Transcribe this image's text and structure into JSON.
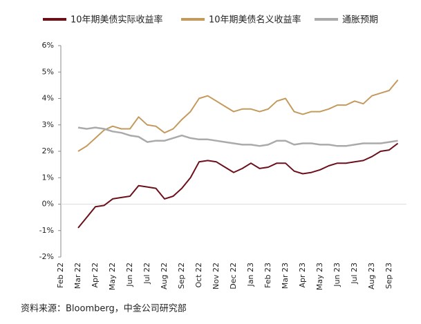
{
  "chart_data": {
    "type": "line",
    "categories": [
      "Feb 22",
      null,
      "Mar 22",
      null,
      "Apr 22",
      null,
      "May 22",
      null,
      "Jun 22",
      null,
      "Jul 22",
      null,
      "Aug 22",
      null,
      "Sep 22",
      null,
      "Oct 22",
      null,
      "Nov 22",
      null,
      "Dec 22",
      null,
      "Jan 23",
      null,
      "Feb 23",
      null,
      "Mar 23",
      null,
      "Apr 23",
      null,
      "May 23",
      null,
      "Jun 23",
      null,
      "Jul 23",
      null,
      "Aug 23",
      null,
      "Sep 23",
      null
    ],
    "series": [
      {
        "name": "10年期美债实际收益率",
        "color": "#6b0f1a",
        "values": [
          null,
          null,
          -0.9,
          -0.5,
          -0.1,
          -0.05,
          0.2,
          0.25,
          0.3,
          0.7,
          0.65,
          0.6,
          0.2,
          0.3,
          0.6,
          1.0,
          1.6,
          1.65,
          1.6,
          1.4,
          1.2,
          1.35,
          1.55,
          1.35,
          1.4,
          1.55,
          1.55,
          1.25,
          1.15,
          1.2,
          1.3,
          1.45,
          1.55,
          1.55,
          1.6,
          1.65,
          1.8,
          2.0,
          2.05,
          2.3
        ]
      },
      {
        "name": "10年期美债名义收益率",
        "color": "#c49a5c",
        "values": [
          null,
          null,
          2.0,
          2.2,
          2.5,
          2.8,
          2.95,
          2.85,
          2.85,
          3.3,
          3.0,
          2.95,
          2.7,
          2.85,
          3.2,
          3.5,
          4.0,
          4.1,
          3.9,
          3.7,
          3.5,
          3.6,
          3.6,
          3.5,
          3.6,
          3.9,
          4.0,
          3.5,
          3.4,
          3.5,
          3.5,
          3.6,
          3.75,
          3.75,
          3.9,
          3.8,
          4.1,
          4.2,
          4.3,
          4.7
        ]
      },
      {
        "name": "通胀预期",
        "color": "#aaaaaa",
        "values": [
          null,
          null,
          2.9,
          2.85,
          2.9,
          2.85,
          2.75,
          2.7,
          2.6,
          2.55,
          2.35,
          2.4,
          2.4,
          2.5,
          2.6,
          2.5,
          2.45,
          2.45,
          2.4,
          2.35,
          2.3,
          2.25,
          2.25,
          2.2,
          2.25,
          2.4,
          2.4,
          2.25,
          2.3,
          2.3,
          2.25,
          2.25,
          2.2,
          2.2,
          2.25,
          2.3,
          2.3,
          2.3,
          2.35,
          2.4
        ]
      }
    ],
    "ylim": [
      -2,
      6
    ],
    "yticks": [
      {
        "value": -2,
        "label": "-2%"
      },
      {
        "value": -1,
        "label": "-1%"
      },
      {
        "value": 0,
        "label": "0%"
      },
      {
        "value": 1,
        "label": "1%"
      },
      {
        "value": 2,
        "label": "2%"
      },
      {
        "value": 3,
        "label": "3%"
      },
      {
        "value": 4,
        "label": "4%"
      },
      {
        "value": 5,
        "label": "5%"
      },
      {
        "value": 6,
        "label": "6%"
      }
    ],
    "source": "资料来源：Bloomberg，中金公司研究部"
  }
}
